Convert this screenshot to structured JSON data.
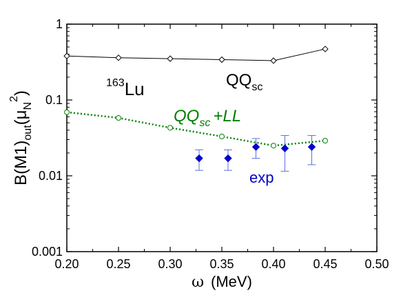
{
  "chart_data": {
    "type": "scatter",
    "xscale": "linear",
    "yscale": "log",
    "xlim": [
      0.2,
      0.5
    ],
    "ylim": [
      0.001,
      1
    ],
    "xticks": [
      0.2,
      0.25,
      0.3,
      0.35,
      0.4,
      0.45,
      0.5
    ],
    "xtick_labels": [
      "0.20",
      "0.25",
      "0.30",
      "0.35",
      "0.40",
      "0.45",
      "0.50"
    ],
    "yticks": [
      0.001,
      0.01,
      0.1,
      1
    ],
    "ytick_labels": [
      "0.001",
      "0.01",
      "0.1",
      "1"
    ],
    "xlabel": {
      "symbol": "ω",
      "unit": "(MeV)"
    },
    "ylabel": {
      "base": "B(M1)",
      "sub1": "out",
      "paren": "(μ",
      "sub2": "N",
      "sup": "2",
      "close": ")"
    },
    "grid": false,
    "series": [
      {
        "style": "line-open-diamond",
        "color": "#000000",
        "x": [
          0.2,
          0.25,
          0.3,
          0.35,
          0.4,
          0.45
        ],
        "y": [
          0.38,
          0.36,
          0.35,
          0.34,
          0.33,
          0.47
        ]
      },
      {
        "style": "dotted-open-circle",
        "color": "#008000",
        "x": [
          0.2,
          0.25,
          0.3,
          0.35,
          0.4,
          0.45
        ],
        "y": [
          0.069,
          0.058,
          0.043,
          0.033,
          0.025,
          0.029
        ]
      },
      {
        "style": "filled-diamond-errorbars",
        "color": "#0000cc",
        "x": [
          0.328,
          0.356,
          0.383,
          0.411,
          0.437
        ],
        "y": [
          0.017,
          0.017,
          0.024,
          0.023,
          0.024
        ],
        "yerr_low": [
          0.0118,
          0.0118,
          0.017,
          0.0115,
          0.014
        ],
        "yerr_high": [
          0.022,
          0.022,
          0.031,
          0.034,
          0.034
        ]
      }
    ],
    "annotations": {
      "nucleus": {
        "sup": "163",
        "text": "Lu"
      },
      "qq_top": {
        "text": "QQ",
        "sub": "sc"
      },
      "qq_ll": {
        "text": "QQ",
        "sub": "sc",
        "tail": "+LL"
      },
      "exp": {
        "text": "exp"
      }
    }
  }
}
